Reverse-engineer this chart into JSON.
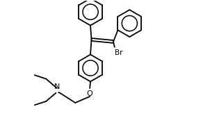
{
  "background_color": "#ffffff",
  "bond_color": "#000000",
  "text_color": "#000000",
  "figsize": [
    3.02,
    1.93
  ],
  "dpi": 100,
  "xlim": [
    0,
    10
  ],
  "ylim": [
    0,
    6.4
  ],
  "ring_r": 0.65,
  "lw": 1.3
}
